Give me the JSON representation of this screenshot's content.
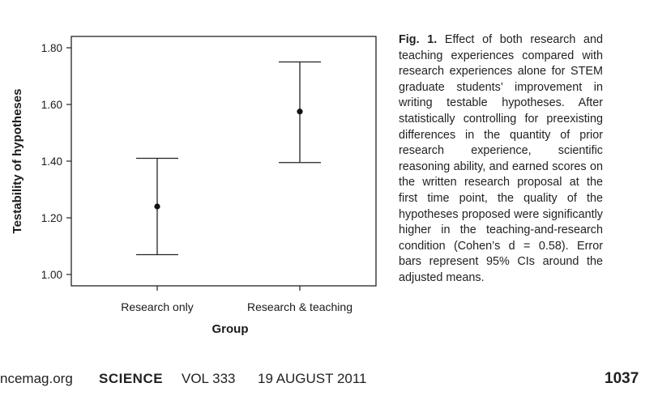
{
  "chart_data": {
    "type": "errorbar",
    "categories": [
      "Research only",
      "Research & teaching"
    ],
    "series": [
      {
        "values": [
          1.24,
          1.575
        ],
        "ci_lower": [
          1.07,
          1.395
        ],
        "ci_upper": [
          1.41,
          1.75
        ]
      }
    ],
    "xlabel": "Group",
    "ylabel": "Testability of hypotheses",
    "ylim": [
      0.96,
      1.84
    ],
    "yticks": [
      "1.00",
      "1.20",
      "1.40",
      "1.60",
      "1.80"
    ],
    "ytick_values": [
      1.0,
      1.2,
      1.4,
      1.6,
      1.8
    ],
    "grid": false
  },
  "caption": {
    "label": "Fig. 1.",
    "text": "Effect of both research and teaching experiences compared with research experiences alone for STEM graduate students’ improvement in writing testable hypotheses. After statistically controlling for preexisting differences in the quantity of prior research experience, scientific reasoning ability, and earned scores on the written research proposal at the first time point, the quality of the hypotheses proposed were significantly higher in the teaching-and-research condition (Cohen’s d = 0.58). Error bars represent 95% CIs around the adjusted means."
  },
  "footer": {
    "site": "ncemag.org",
    "journal": "SCIENCE",
    "volume": "VOL 333",
    "date": "19 AUGUST 2011",
    "page": "1037"
  }
}
